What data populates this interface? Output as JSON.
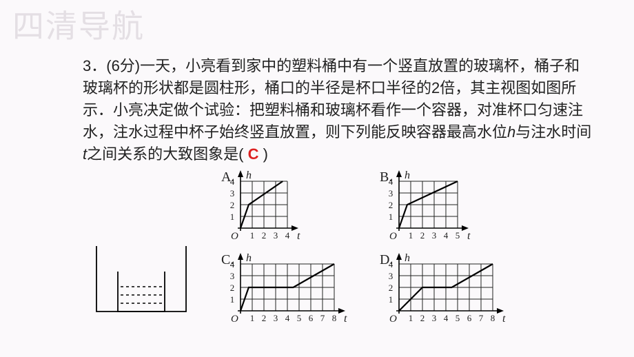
{
  "watermark": "四清导航",
  "question": {
    "number": "3．",
    "points": "(6分)",
    "body1": "一天，小亮看到家中的塑料桶中有一个竖直放置的玻璃杯，桶子和玻璃杯的形状都是圆柱形，桶口的半径是杯口半径的2倍，其主视图如图所示．小亮决定做个试验：把塑料桶和玻璃杯看作一个容器，对准杯口匀速注水，注水过程中杯子始终竖直放置，则下列能反映容器最高水位",
    "var_h": "h",
    "mid": "与注水时间",
    "var_t": "t",
    "body2": "之间关系的大致图象是(",
    "closeParen": ")",
    "answer": "C"
  },
  "charts": {
    "axis_h": "h",
    "axis_t": "t",
    "origin": "O",
    "yticks": [
      1,
      2,
      3,
      4
    ],
    "A": {
      "label": "A.",
      "xmax": 4,
      "segments": [
        [
          0,
          0,
          0.7,
          2
        ],
        [
          0.7,
          2,
          3.6,
          4
        ]
      ]
    },
    "B": {
      "label": "B.",
      "xmax": 5,
      "segments": [
        [
          0,
          0,
          0.7,
          2
        ],
        [
          0.7,
          2,
          5,
          4
        ]
      ]
    },
    "C": {
      "label": "C.",
      "xmax": 8,
      "segments": [
        [
          0,
          0,
          0.7,
          2
        ],
        [
          0.7,
          2,
          4.5,
          2
        ],
        [
          4.5,
          2,
          8,
          4
        ]
      ]
    },
    "D": {
      "label": "D.",
      "xmax": 8,
      "segments": [
        [
          0,
          0,
          2,
          2
        ],
        [
          2,
          2,
          4.5,
          2
        ],
        [
          4.5,
          2,
          8,
          4
        ]
      ]
    }
  },
  "style": {
    "grid_color": "#222222",
    "line_color": "#000000",
    "bg": "#fbf9fb",
    "cell": 17,
    "answer_color": "#d22",
    "text_color": "#222222"
  },
  "container": {
    "outer_w": 130,
    "outer_h": 95,
    "inner_w": 68,
    "inner_h": 58,
    "dash": "4,4"
  }
}
